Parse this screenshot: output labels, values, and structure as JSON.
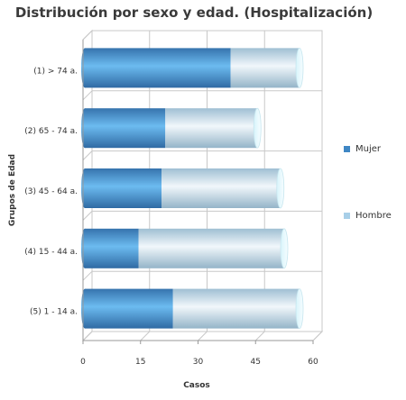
{
  "chart_data": {
    "type": "bar",
    "orientation": "horizontal",
    "stacked": true,
    "title": "Distribución por sexo y edad. (Hospitalización)",
    "xlabel": "Casos",
    "ylabel": "Grupos de Edad",
    "categories": [
      "(1) > 74 a.",
      "(2) 65 - 74 a.",
      "(3) 45 - 64 a.",
      "(4) 15 - 44 a.",
      "(5) 1 - 14 a."
    ],
    "series": [
      {
        "name": "Mujer",
        "values": [
          38,
          21,
          20,
          14,
          23
        ],
        "color": "#3f87c4"
      },
      {
        "name": "Hombre",
        "values": [
          18,
          24,
          31,
          38,
          33
        ],
        "color": "#a8cfe8"
      }
    ],
    "xlim": [
      0,
      60
    ],
    "xticks": [
      0,
      15,
      30,
      45,
      60
    ],
    "grid": true,
    "legend_position": "right"
  }
}
